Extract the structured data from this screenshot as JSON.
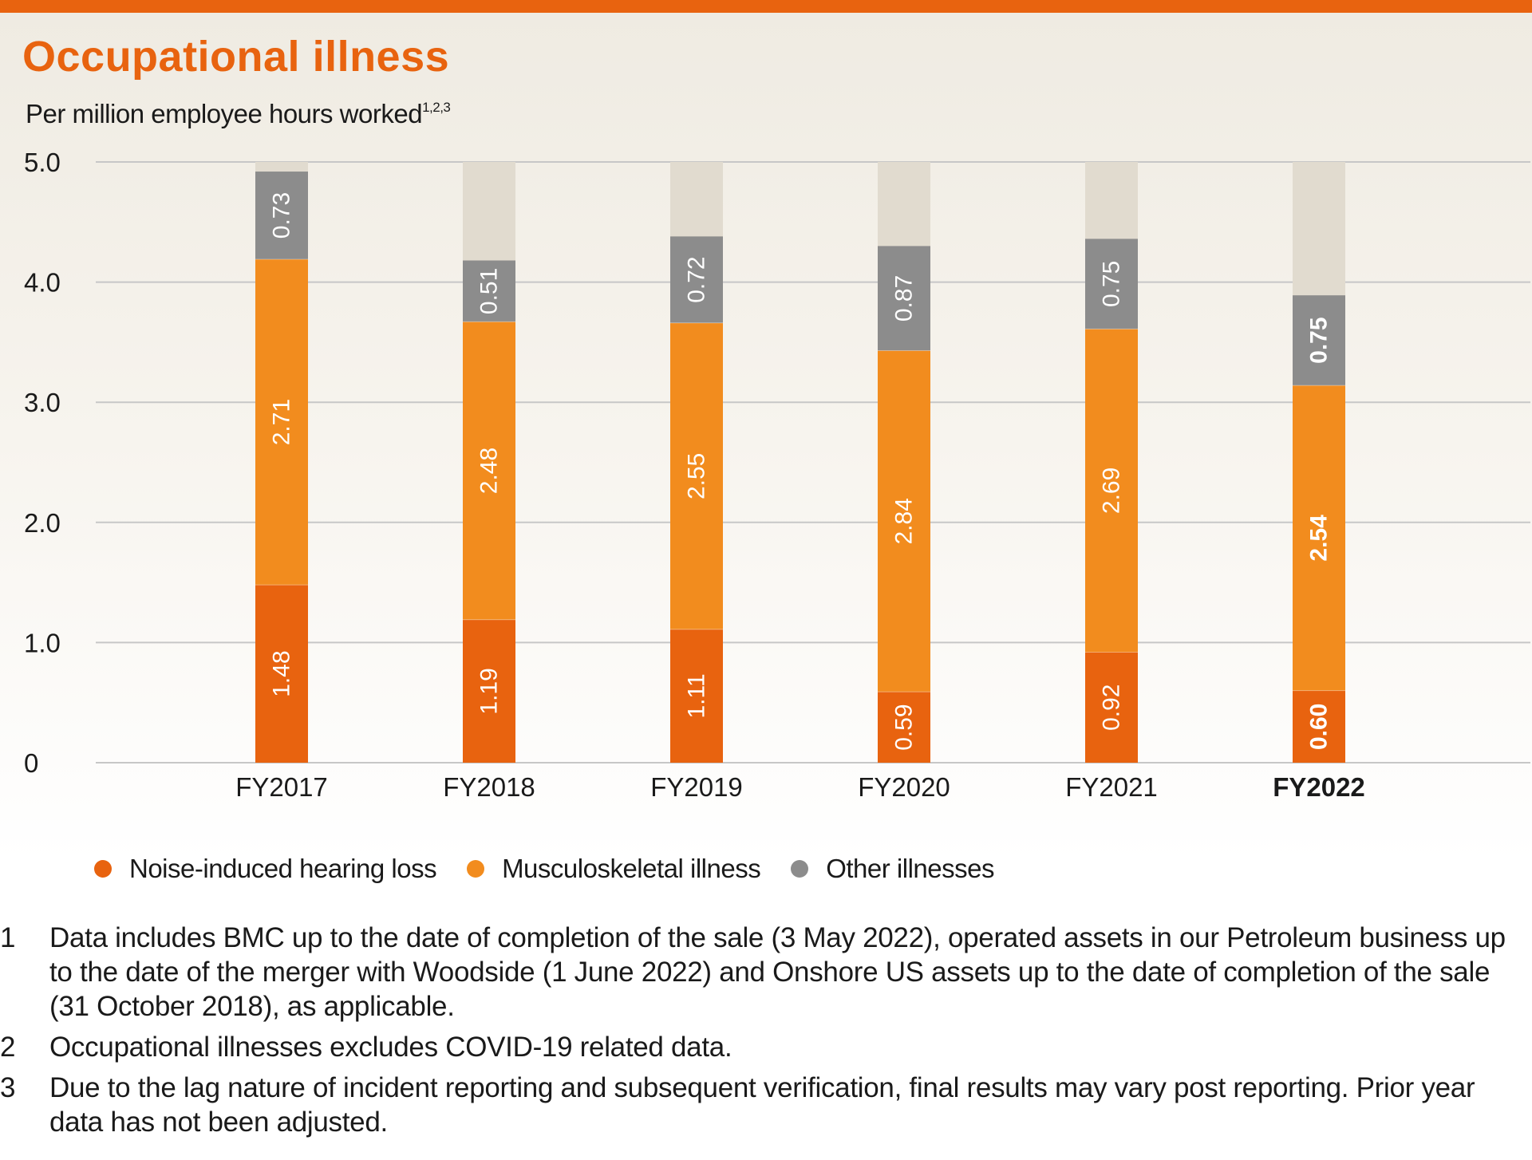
{
  "header": {
    "title": "Occupational illness",
    "subtitle": "Per million employee hours worked",
    "subtitle_sup": "1,2,3"
  },
  "colors": {
    "accent": "#e8630f",
    "noise": "#e8630f",
    "musculoskeletal": "#f28c1e",
    "other": "#8c8c8c",
    "track": "#e1dbcf",
    "grid": "#c7c7c7",
    "axis_text": "#1a1a1a"
  },
  "chart_data": {
    "type": "bar",
    "stacked": true,
    "orientation": "vertical",
    "categories": [
      "FY2017",
      "FY2018",
      "FY2019",
      "FY2020",
      "FY2021",
      "FY2022"
    ],
    "bold_category": "FY2022",
    "series": [
      {
        "name": "Noise-induced hearing loss",
        "color": "#e8630f",
        "values": [
          1.48,
          1.19,
          1.11,
          0.59,
          0.92,
          0.6
        ],
        "labels": [
          "1.48",
          "1.19",
          "1.11",
          "0.59",
          "0.92",
          "0.60"
        ]
      },
      {
        "name": "Musculoskeletal illness",
        "color": "#f28c1e",
        "values": [
          2.71,
          2.48,
          2.55,
          2.84,
          2.69,
          2.54
        ],
        "labels": [
          "2.71",
          "2.48",
          "2.55",
          "2.84",
          "2.69",
          "2.54"
        ]
      },
      {
        "name": "Other illnesses",
        "color": "#8c8c8c",
        "values": [
          0.73,
          0.51,
          0.72,
          0.87,
          0.75,
          0.75
        ],
        "labels": [
          "0.73",
          "0.51",
          "0.72",
          "0.87",
          "0.75",
          "0.75"
        ]
      }
    ],
    "ylim": [
      0,
      5.0
    ],
    "yticks": [
      0,
      1.0,
      2.0,
      3.0,
      4.0,
      5.0
    ],
    "ytick_labels": [
      "0",
      "1.0",
      "2.0",
      "3.0",
      "4.0",
      "5.0"
    ],
    "grid": true,
    "legend_position": "bottom",
    "data_labels": "inside-rotated"
  },
  "legend": [
    {
      "label": "Noise-induced hearing loss",
      "color": "#e8630f"
    },
    {
      "label": "Musculoskeletal illness",
      "color": "#f28c1e"
    },
    {
      "label": "Other illnesses",
      "color": "#8c8c8c"
    }
  ],
  "footnotes": [
    {
      "num": "1",
      "text": "Data includes BMC up to the date of completion of the sale (3 May 2022), operated assets in our Petroleum business up to the date of the merger with Woodside (1 June 2022) and Onshore US assets up to the date of completion of the sale (31 October 2018), as applicable."
    },
    {
      "num": "2",
      "text": "Occupational illnesses excludes COVID-19 related data."
    },
    {
      "num": "3",
      "text": "Due to the lag nature of incident reporting and subsequent verification, final results may vary post reporting. Prior year data has not been adjusted."
    }
  ]
}
